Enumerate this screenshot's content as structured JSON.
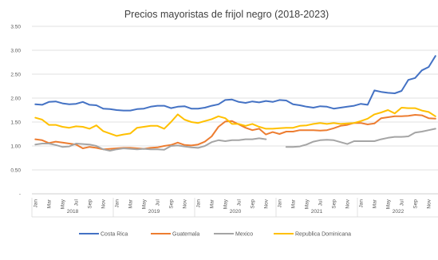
{
  "chart_data": {
    "type": "line",
    "title": "Precios mayoristas de frijol negro (2018-2023)",
    "xlabel": "",
    "ylabel": "",
    "ylim": [
      0,
      3.5
    ],
    "yticks": [
      "-",
      "0.50",
      "1.00",
      "1.50",
      "2.00",
      "2.50",
      "3.00",
      "3.50"
    ],
    "grid": "horizontal",
    "legend": "bottom",
    "x_month_labels": [
      "Jan",
      "Mar",
      "May",
      "Jul",
      "Sep",
      "Nov"
    ],
    "year_labels": [
      "2018",
      "2019",
      "2020",
      "2021",
      "2022",
      "2023"
    ],
    "period_start": "2018-01",
    "period_end": "2023-01",
    "series": [
      {
        "name": "Costa Rica",
        "color": "#4472C4",
        "values": [
          1.87,
          1.86,
          1.92,
          1.93,
          1.89,
          1.87,
          1.88,
          1.92,
          1.86,
          1.85,
          1.78,
          1.77,
          1.75,
          1.74,
          1.74,
          1.77,
          1.78,
          1.82,
          1.84,
          1.84,
          1.79,
          1.82,
          1.83,
          1.78,
          1.78,
          1.8,
          1.84,
          1.87,
          1.96,
          1.97,
          1.92,
          1.9,
          1.93,
          1.91,
          1.94,
          1.92,
          1.96,
          1.95,
          1.87,
          1.85,
          1.82,
          1.8,
          1.83,
          1.82,
          1.78,
          1.8,
          1.82,
          1.84,
          1.88,
          1.86,
          2.16,
          2.13,
          2.11,
          2.1,
          2.15,
          2.38,
          2.42,
          2.58,
          2.65,
          2.88
        ]
      },
      {
        "name": "Guatemala",
        "color": "#ED7D31",
        "values": [
          1.14,
          1.12,
          1.06,
          1.09,
          1.07,
          1.05,
          1.03,
          0.95,
          0.98,
          0.96,
          0.93,
          0.94,
          0.95,
          0.96,
          0.96,
          0.95,
          0.94,
          0.96,
          0.97,
          1.0,
          1.02,
          1.07,
          1.02,
          1.01,
          1.03,
          1.09,
          1.2,
          1.4,
          1.51,
          1.52,
          1.45,
          1.38,
          1.33,
          1.36,
          1.24,
          1.29,
          1.25,
          1.3,
          1.3,
          1.33,
          1.33,
          1.33,
          1.32,
          1.33,
          1.37,
          1.42,
          1.44,
          1.48,
          1.48,
          1.45,
          1.47,
          1.58,
          1.6,
          1.62,
          1.62,
          1.63,
          1.65,
          1.64,
          1.58,
          1.57
        ]
      },
      {
        "name": "Mexico",
        "color": "#A5A5A5",
        "values": [
          1.03,
          1.05,
          1.05,
          1.02,
          0.98,
          0.99,
          1.05,
          1.04,
          1.03,
          1.0,
          0.93,
          0.9,
          0.93,
          0.95,
          0.94,
          0.93,
          0.94,
          0.93,
          0.93,
          0.92,
          1.0,
          1.01,
          0.99,
          0.97,
          0.96,
          1.0,
          1.08,
          1.12,
          1.1,
          1.12,
          1.12,
          1.14,
          1.14,
          1.16,
          1.14,
          null,
          null,
          0.98,
          0.98,
          0.99,
          1.03,
          1.09,
          1.12,
          1.13,
          1.12,
          1.08,
          1.04,
          1.1,
          1.1,
          1.1,
          1.1,
          1.14,
          1.17,
          1.19,
          1.19,
          1.2,
          1.28,
          1.3,
          1.33,
          1.36
        ]
      },
      {
        "name": "Republica Dominicana",
        "color": "#FFC000",
        "values": [
          1.59,
          1.55,
          1.44,
          1.44,
          1.4,
          1.38,
          1.41,
          1.4,
          1.36,
          1.43,
          1.31,
          1.26,
          1.21,
          1.24,
          1.26,
          1.38,
          1.4,
          1.42,
          1.42,
          1.36,
          1.5,
          1.66,
          1.55,
          1.5,
          1.48,
          1.52,
          1.56,
          1.62,
          1.58,
          1.46,
          1.46,
          1.42,
          1.46,
          1.4,
          1.36,
          1.36,
          1.37,
          1.38,
          1.38,
          1.42,
          1.43,
          1.46,
          1.48,
          1.46,
          1.48,
          1.46,
          1.47,
          1.48,
          1.52,
          1.57,
          1.66,
          1.7,
          1.75,
          1.68,
          1.8,
          1.79,
          1.79,
          1.74,
          1.71,
          1.62
        ]
      }
    ]
  }
}
